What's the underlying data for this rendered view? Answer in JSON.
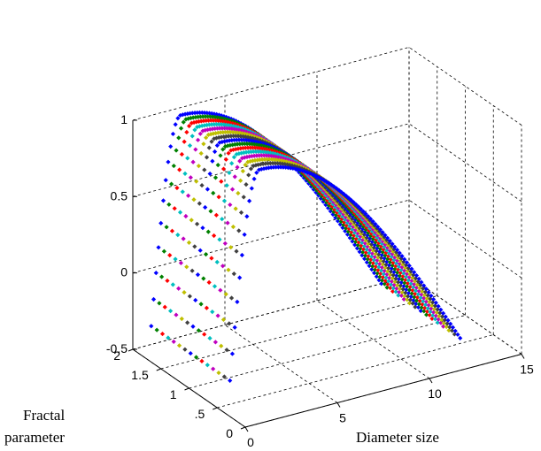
{
  "chart_data": {
    "type": "scatter",
    "projection": "3d",
    "title": "",
    "xlabel": "Diameter size",
    "ylabel": "Fractal parameter",
    "zlabel": "",
    "xlim": [
      0,
      15
    ],
    "ylim": [
      0,
      2
    ],
    "zlim": [
      -0.5,
      1
    ],
    "x_ticks": [
      "0",
      "5",
      "10",
      "15"
    ],
    "y_ticks": [
      "0",
      ".5",
      "1",
      "1.5",
      "2"
    ],
    "z_ticks": [
      "-0.5",
      "0",
      "0.5",
      "1"
    ],
    "grid": true,
    "legend": "none",
    "marker": "diamond",
    "curve_x_range": [
      1,
      13.5
    ],
    "curve_peak_x": 2.6,
    "curve_peak_z": 0.95,
    "curve_start_z": -0.38,
    "curve_end_z": -0.5,
    "series": [
      {
        "color": "#0000ff",
        "fractal_parameter": 2.0
      },
      {
        "color": "#008000",
        "fractal_parameter": 1.9
      },
      {
        "color": "#ff0000",
        "fractal_parameter": 1.8
      },
      {
        "color": "#00bfbf",
        "fractal_parameter": 1.7
      },
      {
        "color": "#bf00bf",
        "fractal_parameter": 1.6
      },
      {
        "color": "#bfbf00",
        "fractal_parameter": 1.5
      },
      {
        "color": "#404040",
        "fractal_parameter": 1.4
      },
      {
        "color": "#0000ff",
        "fractal_parameter": 1.3
      },
      {
        "color": "#008000",
        "fractal_parameter": 1.2
      },
      {
        "color": "#ff0000",
        "fractal_parameter": 1.1
      },
      {
        "color": "#00bfbf",
        "fractal_parameter": 1.0
      },
      {
        "color": "#bf00bf",
        "fractal_parameter": 0.9
      },
      {
        "color": "#bfbf00",
        "fractal_parameter": 0.8
      },
      {
        "color": "#404040",
        "fractal_parameter": 0.7
      },
      {
        "color": "#0000ff",
        "fractal_parameter": 0.6
      }
    ]
  }
}
